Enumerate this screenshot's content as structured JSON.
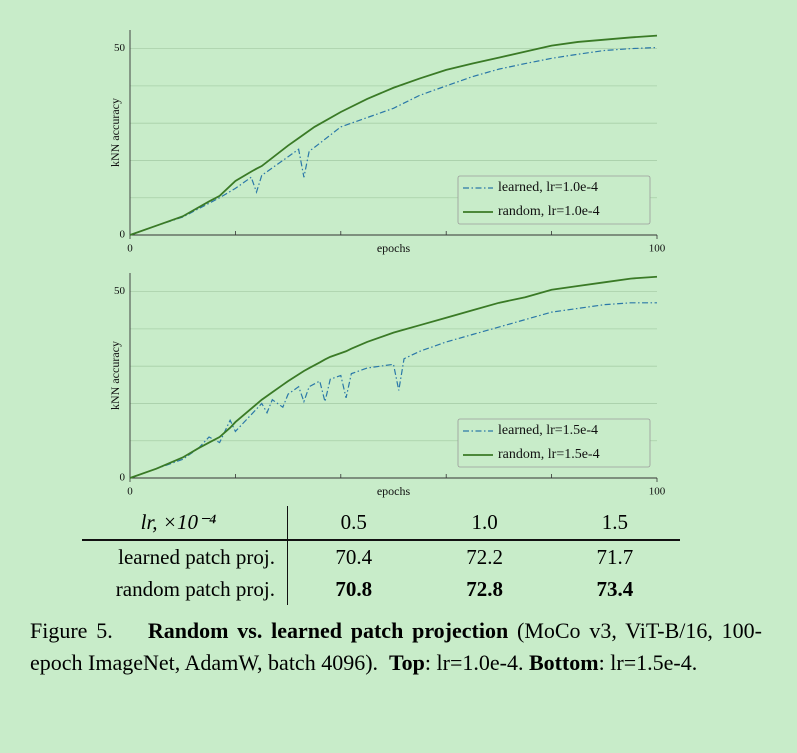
{
  "chart_data": [
    {
      "type": "line",
      "xlabel": "epochs",
      "ylabel": "kNN accuracy",
      "x": [
        0,
        5,
        10,
        15,
        17,
        20,
        23,
        24,
        25,
        30,
        32,
        33,
        34,
        35,
        40,
        45,
        50,
        55,
        60,
        65,
        70,
        75,
        80,
        85,
        90,
        95,
        100
      ],
      "series": [
        {
          "name": "learned, lr=1.0e-4",
          "color": "#2b78a8",
          "dash": "dashdot",
          "values": [
            0,
            2.5,
            4.8,
            8.5,
            10,
            12.5,
            15.5,
            11.5,
            16,
            21,
            23,
            15.5,
            22.5,
            23.5,
            29,
            31.5,
            34,
            37.5,
            40,
            42.5,
            44.5,
            46,
            47.4,
            48.5,
            49.5,
            50,
            50.3
          ]
        },
        {
          "name": "random, lr=1.0e-4",
          "color": "#3a7a26",
          "dash": "solid",
          "values": [
            0,
            2.5,
            5,
            9,
            10.5,
            14.5,
            17,
            17.8,
            18.5,
            24,
            26,
            27,
            28,
            29,
            33,
            36.5,
            39.5,
            42,
            44.3,
            46,
            47.6,
            49.2,
            50.8,
            51.8,
            52.4,
            53,
            53.5
          ]
        }
      ],
      "xlim": [
        0,
        100
      ],
      "ylim": [
        0,
        55
      ],
      "xticks": [
        0,
        100
      ],
      "minor_xticks": [
        20,
        40,
        60,
        80
      ],
      "yticks": [
        0,
        50
      ],
      "minor_yticks": [
        10,
        20,
        30,
        40
      ],
      "grid": true,
      "legend": "lower right"
    },
    {
      "type": "line",
      "xlabel": "epochs",
      "ylabel": "kNN accuracy",
      "x": [
        0,
        5,
        10,
        13,
        15,
        17,
        19,
        20,
        25,
        26,
        27,
        29,
        30,
        32,
        33,
        34,
        36,
        37,
        38,
        40,
        41,
        42,
        45,
        50,
        51,
        52,
        55,
        60,
        65,
        70,
        75,
        80,
        85,
        90,
        95,
        100
      ],
      "series": [
        {
          "name": "learned, lr=1.5e-4",
          "color": "#2b78a8",
          "dash": "dashdot",
          "values": [
            0,
            2.5,
            5,
            8,
            11,
            9.5,
            15.5,
            12.5,
            20,
            17.5,
            21,
            19,
            22.5,
            24.5,
            20.5,
            24.5,
            26,
            20.5,
            26.5,
            27.5,
            21.5,
            28,
            29.5,
            30.5,
            23.5,
            32,
            34,
            36.5,
            38.5,
            40.5,
            42.5,
            44.5,
            45.5,
            46.5,
            47,
            47
          ]
        },
        {
          "name": "random, lr=1.5e-4",
          "color": "#3a7a26",
          "dash": "solid",
          "values": [
            0,
            2.5,
            5.5,
            8,
            9.5,
            11,
            13.5,
            15,
            21,
            22,
            23,
            25,
            26,
            27.8,
            28.7,
            29.5,
            31,
            31.8,
            32.5,
            33.5,
            34,
            34.7,
            36.5,
            39,
            39.4,
            39.8,
            41,
            43,
            45,
            47,
            48.5,
            50.5,
            51.5,
            52.5,
            53.5,
            54
          ]
        }
      ],
      "xlim": [
        0,
        100
      ],
      "ylim": [
        0,
        55
      ],
      "xticks": [
        0,
        100
      ],
      "minor_xticks": [
        20,
        40,
        60,
        80
      ],
      "yticks": [
        0,
        50
      ],
      "minor_yticks": [
        10,
        20,
        30,
        40
      ],
      "grid": true,
      "legend": "lower right"
    }
  ],
  "table": {
    "header": [
      "lr, ×10⁻⁴",
      "0.5",
      "1.0",
      "1.5"
    ],
    "rows": [
      [
        "learned patch proj.",
        "70.4",
        "72.2",
        "71.7"
      ],
      [
        "random patch proj.",
        "70.8",
        "72.8",
        "73.4"
      ]
    ]
  },
  "caption": {
    "label": "Figure 5.",
    "title": "Random vs. learned patch projection",
    "text": "(MoCo v3, ViT-B/16, 100-epoch ImageNet, AdamW, batch 4096).",
    "top": "Top",
    "top_text": ": lr=1.0e-4.",
    "bottom": "Bottom",
    "bottom_text": ": lr=1.5e-4."
  }
}
